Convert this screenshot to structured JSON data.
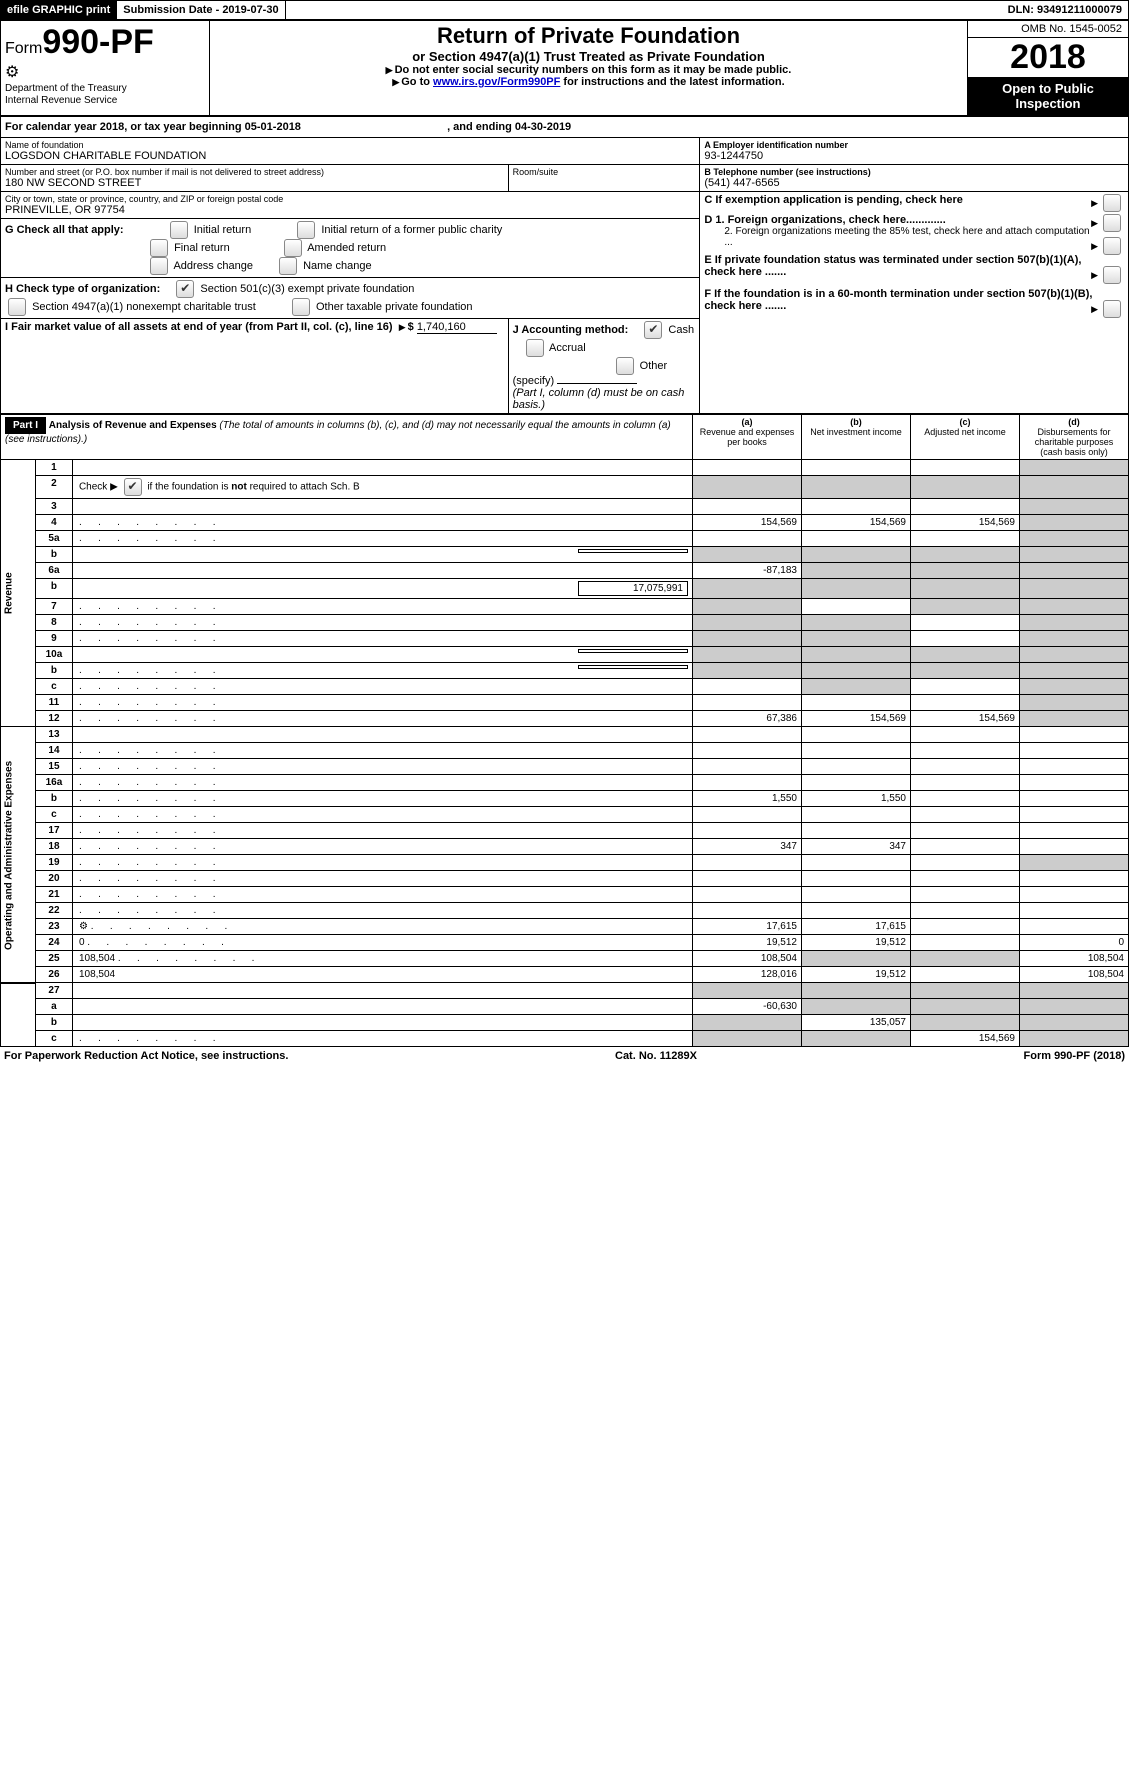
{
  "topbar": {
    "efile": "efile GRAPHIC print",
    "submission": "Submission Date - 2019-07-30",
    "dln": "DLN: 93491211000079"
  },
  "header": {
    "form_prefix": "Form",
    "form_no": "990-PF",
    "dept": "Department of the Treasury",
    "irs": "Internal Revenue Service",
    "title": "Return of Private Foundation",
    "subtitle": "or Section 4947(a)(1) Trust Treated as Private Foundation",
    "warn": "Do not enter social security numbers on this form as it may be made public.",
    "goto": "Go to ",
    "goto_link": "www.irs.gov/Form990PF",
    "goto_tail": " for instructions and the latest information.",
    "omb": "OMB No. 1545-0052",
    "year": "2018",
    "inspect": "Open to Public Inspection"
  },
  "calyear": {
    "pre": "For calendar year 2018, or tax year beginning ",
    "begin": "05-01-2018",
    "mid": ", and ending ",
    "end": "04-30-2019"
  },
  "left": {
    "name_lbl": "Name of foundation",
    "name": "LOGSDON CHARITABLE FOUNDATION",
    "addr_lbl": "Number and street (or P.O. box number if mail is not delivered to street address)",
    "addr": "180 NW SECOND STREET",
    "room_lbl": "Room/suite",
    "city_lbl": "City or town, state or province, country, and ZIP or foreign postal code",
    "city": "PRINEVILLE, OR  97754",
    "g": "G Check all that apply:",
    "g1": "Initial return",
    "g2": "Initial return of a former public charity",
    "g3": "Final return",
    "g4": "Amended return",
    "g5": "Address change",
    "g6": "Name change",
    "h": "H Check type of organization:",
    "h1": "Section 501(c)(3) exempt private foundation",
    "h2": "Section 4947(a)(1) nonexempt charitable trust",
    "h3": "Other taxable private foundation",
    "i": "I Fair market value of all assets at end of year (from Part II, col. (c), line 16)",
    "i_val": "1,740,160",
    "j": "J Accounting method:",
    "j1": "Cash",
    "j2": "Accrual",
    "j3": "Other (specify)",
    "j_note": "(Part I, column (d) must be on cash basis.)"
  },
  "right": {
    "a_lbl": "A Employer identification number",
    "a": "93-1244750",
    "b_lbl": "B Telephone number (see instructions)",
    "b": "(541) 447-6565",
    "c": "C  If exemption application is pending, check here",
    "d1": "D 1. Foreign organizations, check here.............",
    "d2": "2. Foreign organizations meeting the 85% test, check here and attach computation ...",
    "e": "E  If private foundation status was terminated under section 507(b)(1)(A), check here .......",
    "f": "F  If the foundation is in a 60-month termination under section 507(b)(1)(B), check here ......."
  },
  "part1": {
    "hdr": "Part I",
    "title": "Analysis of Revenue and Expenses",
    "note": "(The total of amounts in columns (b), (c), and (d) may not necessarily equal the amounts in column (a) (see instructions).)",
    "col_a": "Revenue and expenses per books",
    "col_b": "Net investment income",
    "col_c": "Adjusted net income",
    "col_d": "Disbursements for charitable purposes (cash basis only)",
    "sec_rev": "Revenue",
    "sec_exp": "Operating and Administrative Expenses"
  },
  "rows": [
    {
      "n": "1",
      "d": "",
      "a": "",
      "b": "",
      "c": "",
      "shade": [
        "d"
      ]
    },
    {
      "n": "2",
      "d": "",
      "a": "",
      "b": "",
      "c": "",
      "shade": [
        "a",
        "b",
        "c",
        "d"
      ],
      "check": true
    },
    {
      "n": "3",
      "d": "",
      "a": "",
      "b": "",
      "c": "",
      "shade": [
        "d"
      ]
    },
    {
      "n": "4",
      "d": "",
      "dots": true,
      "a": "154,569",
      "b": "154,569",
      "c": "154,569",
      "shade": [
        "d"
      ]
    },
    {
      "n": "5a",
      "d": "",
      "dots": true,
      "a": "",
      "b": "",
      "c": "",
      "shade": [
        "d"
      ]
    },
    {
      "n": "b",
      "d": "",
      "inline": "",
      "a": "",
      "b": "",
      "c": "",
      "shade": [
        "a",
        "b",
        "c",
        "d"
      ]
    },
    {
      "n": "6a",
      "d": "",
      "a": "-87,183",
      "b": "",
      "c": "",
      "shade": [
        "b",
        "c",
        "d"
      ]
    },
    {
      "n": "b",
      "d": "",
      "inline": "17,075,991",
      "a": "",
      "b": "",
      "c": "",
      "shade": [
        "a",
        "b",
        "c",
        "d"
      ]
    },
    {
      "n": "7",
      "d": "",
      "dots": true,
      "a": "",
      "b": "",
      "c": "",
      "shade": [
        "a",
        "c",
        "d"
      ]
    },
    {
      "n": "8",
      "d": "",
      "dots": true,
      "a": "",
      "b": "",
      "c": "",
      "shade": [
        "a",
        "b",
        "d"
      ]
    },
    {
      "n": "9",
      "d": "",
      "dots": true,
      "a": "",
      "b": "",
      "c": "",
      "shade": [
        "a",
        "b",
        "d"
      ]
    },
    {
      "n": "10a",
      "d": "",
      "inline": "",
      "a": "",
      "b": "",
      "c": "",
      "shade": [
        "a",
        "b",
        "c",
        "d"
      ]
    },
    {
      "n": "b",
      "d": "",
      "dots": true,
      "inline": "",
      "a": "",
      "b": "",
      "c": "",
      "shade": [
        "a",
        "b",
        "c",
        "d"
      ]
    },
    {
      "n": "c",
      "d": "",
      "dots": true,
      "a": "",
      "b": "",
      "c": "",
      "shade": [
        "b",
        "d"
      ]
    },
    {
      "n": "11",
      "d": "",
      "dots": true,
      "a": "",
      "b": "",
      "c": "",
      "shade": [
        "d"
      ]
    },
    {
      "n": "12",
      "d": "",
      "dots": true,
      "a": "67,386",
      "b": "154,569",
      "c": "154,569",
      "shade": [
        "d"
      ],
      "section_end": "rev"
    },
    {
      "n": "13",
      "d": "",
      "a": "",
      "b": "",
      "c": ""
    },
    {
      "n": "14",
      "d": "",
      "dots": true,
      "a": "",
      "b": "",
      "c": ""
    },
    {
      "n": "15",
      "d": "",
      "dots": true,
      "a": "",
      "b": "",
      "c": ""
    },
    {
      "n": "16a",
      "d": "",
      "dots": true,
      "a": "",
      "b": "",
      "c": ""
    },
    {
      "n": "b",
      "d": "",
      "dots": true,
      "a": "1,550",
      "b": "1,550",
      "c": ""
    },
    {
      "n": "c",
      "d": "",
      "dots": true,
      "a": "",
      "b": "",
      "c": ""
    },
    {
      "n": "17",
      "d": "",
      "dots": true,
      "a": "",
      "b": "",
      "c": ""
    },
    {
      "n": "18",
      "d": "",
      "dots": true,
      "a": "347",
      "b": "347",
      "c": ""
    },
    {
      "n": "19",
      "d": "",
      "dots": true,
      "a": "",
      "b": "",
      "c": "",
      "shade": [
        "d"
      ]
    },
    {
      "n": "20",
      "d": "",
      "dots": true,
      "a": "",
      "b": "",
      "c": ""
    },
    {
      "n": "21",
      "d": "",
      "dots": true,
      "a": "",
      "b": "",
      "c": ""
    },
    {
      "n": "22",
      "d": "",
      "dots": true,
      "a": "",
      "b": "",
      "c": ""
    },
    {
      "n": "23",
      "d": "",
      "dots": true,
      "a": "17,615",
      "b": "17,615",
      "c": "",
      "icon": true
    },
    {
      "n": "24",
      "d": "0",
      "dots": true,
      "a": "19,512",
      "b": "19,512",
      "c": ""
    },
    {
      "n": "25",
      "d": "108,504",
      "dots": true,
      "a": "108,504",
      "b": "",
      "c": "",
      "shade": [
        "b",
        "c"
      ]
    },
    {
      "n": "26",
      "d": "108,504",
      "a": "128,016",
      "b": "19,512",
      "c": "",
      "section_end": "exp"
    },
    {
      "n": "27",
      "d": "",
      "a": "",
      "b": "",
      "c": "",
      "shade": [
        "a",
        "b",
        "c",
        "d"
      ]
    },
    {
      "n": "a",
      "d": "",
      "a": "-60,630",
      "b": "",
      "c": "",
      "shade": [
        "b",
        "c",
        "d"
      ]
    },
    {
      "n": "b",
      "d": "",
      "a": "",
      "b": "135,057",
      "c": "",
      "shade": [
        "a",
        "c",
        "d"
      ]
    },
    {
      "n": "c",
      "d": "",
      "dots": true,
      "a": "",
      "b": "",
      "c": "154,569",
      "shade": [
        "a",
        "b",
        "d"
      ]
    }
  ],
  "footer": {
    "left": "For Paperwork Reduction Act Notice, see instructions.",
    "mid": "Cat. No. 11289X",
    "right": "Form 990-PF (2018)"
  }
}
